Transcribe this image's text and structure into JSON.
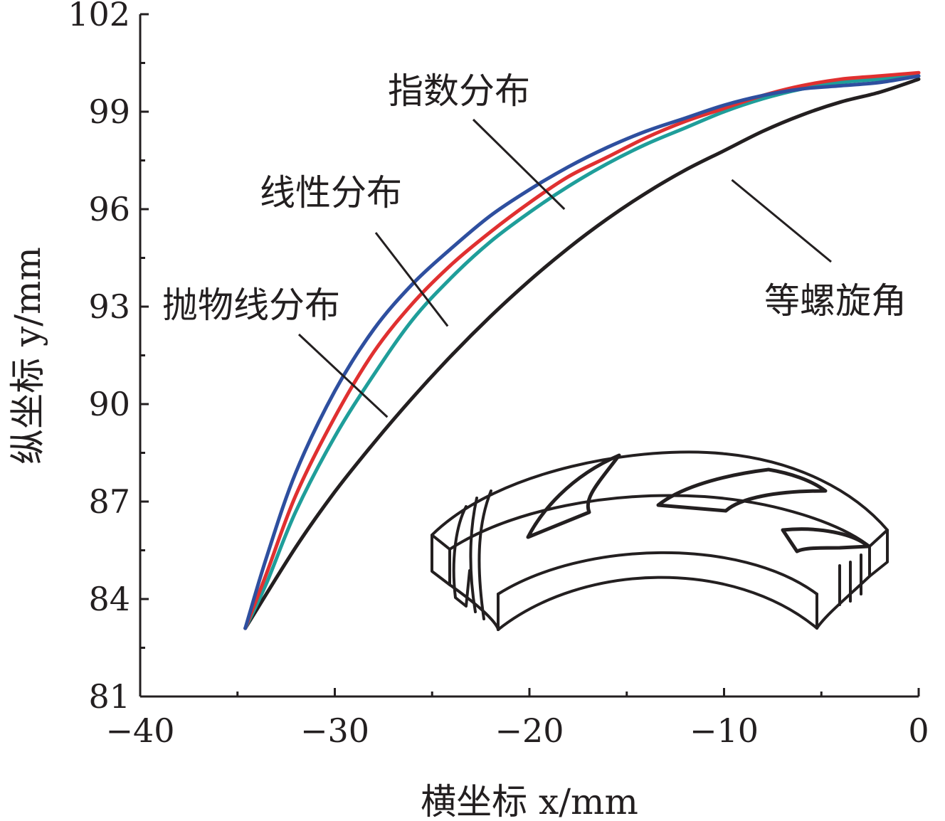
{
  "chart_data": {
    "type": "line",
    "title": "",
    "xlabel": "横坐标 x/mm",
    "ylabel": "纵坐标 y/mm",
    "xlim": [
      -40,
      0
    ],
    "ylim": [
      81,
      102
    ],
    "x_ticks": [
      -40,
      -30,
      -20,
      -10,
      0
    ],
    "x_tick_labels": [
      "−40",
      "−30",
      "−20",
      "−10",
      "0"
    ],
    "y_ticks": [
      81,
      84,
      87,
      90,
      93,
      96,
      99,
      102
    ],
    "y_tick_labels": [
      "81",
      "84",
      "87",
      "90",
      "93",
      "96",
      "99",
      "102"
    ],
    "grid": false,
    "legend": "none",
    "series": [
      {
        "name": "指数分布",
        "color": "#2e4f9f",
        "x": [
          -34.6,
          -33.5,
          -32.0,
          -30.0,
          -28.0,
          -26.0,
          -24.0,
          -22.0,
          -20.0,
          -18.0,
          -16.0,
          -14.0,
          -12.0,
          -10.0,
          -8.0,
          -6.0,
          -4.0,
          -2.0,
          0.0
        ],
        "y": [
          83.1,
          85.3,
          87.9,
          90.4,
          92.3,
          93.7,
          94.8,
          95.8,
          96.6,
          97.3,
          97.9,
          98.4,
          98.8,
          99.2,
          99.5,
          99.7,
          99.8,
          99.9,
          100.1
        ]
      },
      {
        "name": "线性分布",
        "color": "#e03030",
        "x": [
          -34.6,
          -33.5,
          -32.0,
          -30.0,
          -28.0,
          -26.0,
          -24.0,
          -22.0,
          -20.0,
          -18.0,
          -16.0,
          -14.0,
          -12.0,
          -10.0,
          -8.0,
          -6.0,
          -4.0,
          -2.0,
          0.0
        ],
        "y": [
          83.1,
          84.8,
          87.2,
          89.6,
          91.6,
          93.1,
          94.3,
          95.3,
          96.2,
          97.0,
          97.6,
          98.2,
          98.7,
          99.1,
          99.5,
          99.8,
          100.0,
          100.1,
          100.2
        ]
      },
      {
        "name": "抛物线分布",
        "color": "#1f9e9a",
        "x": [
          -34.6,
          -33.5,
          -32.0,
          -30.0,
          -28.0,
          -26.0,
          -24.0,
          -22.0,
          -20.0,
          -18.0,
          -16.0,
          -14.0,
          -12.0,
          -10.0,
          -8.0,
          -6.0,
          -4.0,
          -2.0,
          0.0
        ],
        "y": [
          83.1,
          84.5,
          86.7,
          89.0,
          90.9,
          92.6,
          93.9,
          95.0,
          95.9,
          96.7,
          97.4,
          98.0,
          98.5,
          99.0,
          99.4,
          99.7,
          99.9,
          100.0,
          100.1
        ]
      },
      {
        "name": "等螺旋角",
        "color": "#231f20",
        "x": [
          -34.6,
          -32.0,
          -30.0,
          -28.0,
          -26.0,
          -24.0,
          -22.0,
          -20.0,
          -18.0,
          -16.0,
          -14.0,
          -12.0,
          -10.0,
          -8.0,
          -6.0,
          -4.0,
          -2.0,
          0.0
        ],
        "y": [
          83.1,
          85.6,
          87.3,
          88.8,
          90.2,
          91.5,
          92.7,
          93.8,
          94.8,
          95.7,
          96.5,
          97.2,
          97.8,
          98.4,
          98.9,
          99.3,
          99.6,
          100.0
        ]
      }
    ],
    "annotations": [
      {
        "text": "指数分布",
        "series": "指数分布",
        "point": [
          -18.2,
          96.0
        ]
      },
      {
        "text": "线性分布",
        "series": "线性分布",
        "point": [
          -24.2,
          92.4
        ]
      },
      {
        "text": "抛物线分布",
        "series": "抛物线分布",
        "point": [
          -27.3,
          89.6
        ]
      },
      {
        "text": "等螺旋角",
        "series": "等螺旋角",
        "point": [
          -9.6,
          96.9
        ]
      }
    ],
    "inset": "blade-ring-3d-icon"
  }
}
